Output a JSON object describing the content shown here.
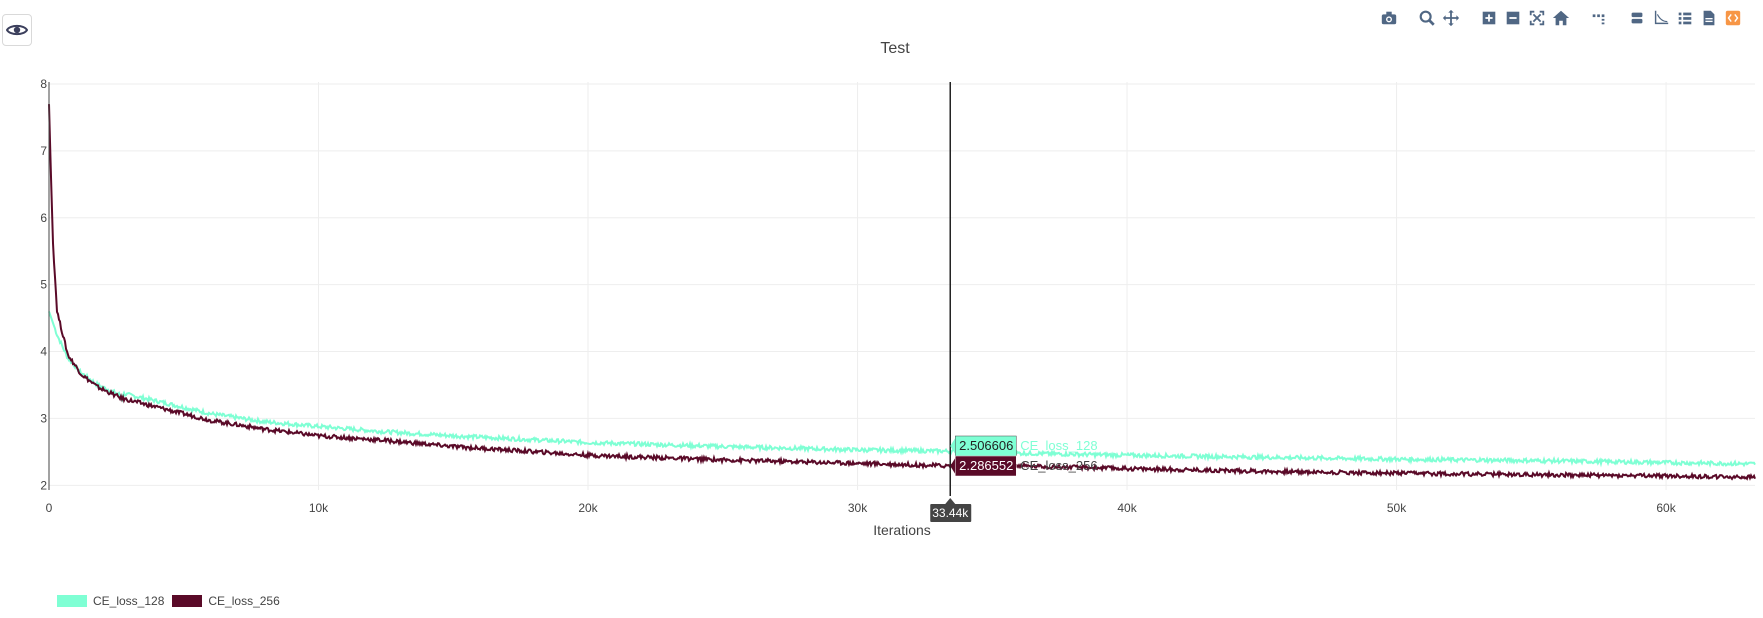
{
  "chart_data": {
    "type": "line",
    "title": "Test",
    "xlabel": "Iterations",
    "ylabel": "",
    "xlim": [
      0,
      63300
    ],
    "ylim": [
      1.93,
      8.03
    ],
    "x_ticks": [
      0,
      10000,
      20000,
      30000,
      40000,
      50000,
      60000
    ],
    "x_tick_labels": [
      "0",
      "10k",
      "20k",
      "30k",
      "40k",
      "50k",
      "60k"
    ],
    "y_ticks": [
      2,
      3,
      4,
      5,
      6,
      7,
      8
    ],
    "y_tick_labels": [
      "2",
      "3",
      "4",
      "5",
      "6",
      "7",
      "8"
    ],
    "grid": true,
    "legend_position": "bottom-left",
    "series": [
      {
        "name": "CE_loss_128",
        "color": "#7fffd4",
        "points": [
          [
            0,
            4.6
          ],
          [
            300,
            4.25
          ],
          [
            700,
            3.9
          ],
          [
            1200,
            3.68
          ],
          [
            1800,
            3.5
          ],
          [
            2600,
            3.36
          ],
          [
            2700,
            3.27
          ],
          [
            2750,
            3.37
          ],
          [
            4000,
            3.26
          ],
          [
            6000,
            3.07
          ],
          [
            8000,
            2.95
          ],
          [
            10000,
            2.88
          ],
          [
            12500,
            2.8
          ],
          [
            15000,
            2.74
          ],
          [
            20000,
            2.64
          ],
          [
            25000,
            2.58
          ],
          [
            30000,
            2.53
          ],
          [
            33440,
            2.51
          ],
          [
            36000,
            2.48
          ],
          [
            40000,
            2.45
          ],
          [
            45000,
            2.42
          ],
          [
            50000,
            2.39
          ],
          [
            55000,
            2.37
          ],
          [
            60000,
            2.34
          ],
          [
            63300,
            2.32
          ]
        ]
      },
      {
        "name": "CE_loss_256",
        "color": "#5a0a28",
        "points": [
          [
            0,
            7.7
          ],
          [
            60,
            6.8
          ],
          [
            150,
            5.6
          ],
          [
            300,
            4.6
          ],
          [
            700,
            3.95
          ],
          [
            1200,
            3.66
          ],
          [
            1800,
            3.47
          ],
          [
            2700,
            3.3
          ],
          [
            4000,
            3.17
          ],
          [
            6000,
            2.97
          ],
          [
            8000,
            2.84
          ],
          [
            10000,
            2.74
          ],
          [
            12500,
            2.67
          ],
          [
            15000,
            2.58
          ],
          [
            20000,
            2.45
          ],
          [
            25000,
            2.38
          ],
          [
            30000,
            2.33
          ],
          [
            33440,
            2.29
          ],
          [
            36000,
            2.29
          ],
          [
            40000,
            2.25
          ],
          [
            45000,
            2.21
          ],
          [
            50000,
            2.18
          ],
          [
            55000,
            2.16
          ],
          [
            60000,
            2.14
          ],
          [
            63300,
            2.12
          ]
        ]
      }
    ],
    "hover": {
      "x": 33440,
      "x_label": "33.44k",
      "entries": [
        {
          "series": "CE_loss_128",
          "value": 2.506606,
          "text": "2.506606",
          "name": "CE_loss_128"
        },
        {
          "series": "CE_loss_256",
          "value": 2.286552,
          "text": "2.286552",
          "name": "CE_loss_256"
        }
      ]
    }
  },
  "legend": {
    "items": [
      {
        "label": "CE_loss_128",
        "color": "#7fffd4"
      },
      {
        "label": "CE_loss_256",
        "color": "#5a0a28"
      }
    ]
  },
  "modebar": {
    "groups": [
      [
        "camera-icon"
      ],
      [
        "zoom-icon",
        "pan-icon"
      ],
      [
        "zoom-in-icon",
        "zoom-out-icon",
        "autoscale-icon",
        "reset-axes-icon"
      ],
      [
        "spike-lines-icon"
      ],
      [
        "hover-closest-icon",
        "hover-compare-icon",
        "legend-list-icon",
        "csv-export-icon",
        "embed-code-icon"
      ]
    ],
    "icon_color": "#506784",
    "accent_color": "#f79646"
  }
}
